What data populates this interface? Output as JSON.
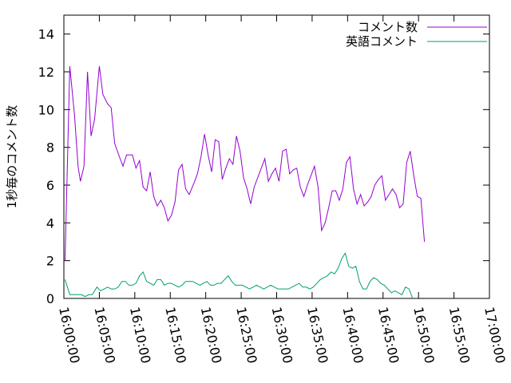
{
  "chart_data": {
    "type": "line",
    "title": "",
    "xlabel": "",
    "ylabel": "1秒毎のコメント数",
    "xlim": [
      "16:00:00",
      "17:00:00"
    ],
    "ylim": [
      0,
      15
    ],
    "xticks": [
      "16:00:00",
      "16:05:00",
      "16:10:00",
      "16:15:00",
      "16:20:00",
      "16:25:00",
      "16:30:00",
      "16:35:00",
      "16:40:00",
      "16:45:00",
      "16:50:00",
      "16:55:00",
      "17:00:00"
    ],
    "yticks": [
      0,
      2,
      4,
      6,
      8,
      10,
      12,
      14
    ],
    "grid": false,
    "legend_position": "top-right",
    "series": [
      {
        "name": "コメント数",
        "color": "#9400d3",
        "points": [
          [
            "16:00:10",
            2.0
          ],
          [
            "16:00:50",
            12.3
          ],
          [
            "16:01:30",
            9.7
          ],
          [
            "16:02:00",
            7.0
          ],
          [
            "16:02:20",
            6.2
          ],
          [
            "16:02:50",
            7.0
          ],
          [
            "16:03:20",
            12.0
          ],
          [
            "16:03:50",
            8.6
          ],
          [
            "16:04:20",
            9.5
          ],
          [
            "16:05:00",
            12.3
          ],
          [
            "16:05:30",
            10.8
          ],
          [
            "16:06:10",
            10.3
          ],
          [
            "16:06:40",
            10.1
          ],
          [
            "16:07:10",
            8.2
          ],
          [
            "16:07:50",
            7.5
          ],
          [
            "16:08:20",
            7.0
          ],
          [
            "16:08:50",
            7.6
          ],
          [
            "16:09:40",
            7.6
          ],
          [
            "16:10:10",
            6.9
          ],
          [
            "16:10:40",
            7.3
          ],
          [
            "16:11:10",
            5.9
          ],
          [
            "16:11:40",
            5.7
          ],
          [
            "16:12:10",
            6.7
          ],
          [
            "16:12:40",
            5.4
          ],
          [
            "16:13:10",
            4.9
          ],
          [
            "16:13:40",
            5.2
          ],
          [
            "16:14:10",
            4.8
          ],
          [
            "16:14:40",
            4.1
          ],
          [
            "16:15:10",
            4.4
          ],
          [
            "16:15:40",
            5.1
          ],
          [
            "16:16:10",
            6.8
          ],
          [
            "16:16:40",
            7.1
          ],
          [
            "16:17:10",
            5.8
          ],
          [
            "16:17:40",
            5.5
          ],
          [
            "16:18:20",
            6.1
          ],
          [
            "16:18:50",
            6.6
          ],
          [
            "16:19:20",
            7.5
          ],
          [
            "16:19:50",
            8.7
          ],
          [
            "16:20:20",
            7.6
          ],
          [
            "16:20:50",
            6.7
          ],
          [
            "16:21:20",
            8.4
          ],
          [
            "16:21:50",
            8.3
          ],
          [
            "16:22:20",
            6.3
          ],
          [
            "16:22:50",
            6.9
          ],
          [
            "16:23:20",
            7.4
          ],
          [
            "16:23:50",
            7.1
          ],
          [
            "16:24:20",
            8.6
          ],
          [
            "16:24:50",
            7.8
          ],
          [
            "16:25:20",
            6.4
          ],
          [
            "16:25:50",
            5.8
          ],
          [
            "16:26:20",
            5.0
          ],
          [
            "16:26:50",
            5.9
          ],
          [
            "16:27:20",
            6.4
          ],
          [
            "16:27:50",
            6.9
          ],
          [
            "16:28:20",
            7.4
          ],
          [
            "16:28:50",
            6.2
          ],
          [
            "16:29:20",
            6.6
          ],
          [
            "16:29:50",
            6.9
          ],
          [
            "16:30:20",
            6.2
          ],
          [
            "16:30:50",
            7.8
          ],
          [
            "16:31:20",
            7.9
          ],
          [
            "16:31:50",
            6.6
          ],
          [
            "16:32:20",
            6.8
          ],
          [
            "16:32:50",
            6.9
          ],
          [
            "16:33:20",
            5.9
          ],
          [
            "16:33:50",
            5.4
          ],
          [
            "16:34:20",
            6.0
          ],
          [
            "16:34:50",
            6.5
          ],
          [
            "16:35:20",
            7.0
          ],
          [
            "16:35:50",
            5.9
          ],
          [
            "16:36:20",
            3.6
          ],
          [
            "16:36:50",
            4.0
          ],
          [
            "16:37:20",
            4.8
          ],
          [
            "16:37:50",
            5.7
          ],
          [
            "16:38:20",
            5.7
          ],
          [
            "16:38:50",
            5.2
          ],
          [
            "16:39:20",
            5.8
          ],
          [
            "16:39:50",
            7.2
          ],
          [
            "16:40:20",
            7.5
          ],
          [
            "16:40:50",
            5.8
          ],
          [
            "16:41:20",
            5.0
          ],
          [
            "16:41:50",
            5.5
          ],
          [
            "16:42:20",
            4.9
          ],
          [
            "16:42:50",
            5.1
          ],
          [
            "16:43:20",
            5.4
          ],
          [
            "16:43:50",
            6.0
          ],
          [
            "16:44:20",
            6.3
          ],
          [
            "16:44:50",
            6.5
          ],
          [
            "16:45:20",
            5.2
          ],
          [
            "16:45:50",
            5.5
          ],
          [
            "16:46:20",
            5.8
          ],
          [
            "16:46:50",
            5.5
          ],
          [
            "16:47:20",
            4.8
          ],
          [
            "16:47:50",
            5.0
          ],
          [
            "16:48:20",
            7.2
          ],
          [
            "16:48:50",
            7.8
          ],
          [
            "16:49:20",
            6.5
          ],
          [
            "16:49:50",
            5.4
          ],
          [
            "16:50:20",
            5.3
          ],
          [
            "16:50:50",
            3.0
          ]
        ]
      },
      {
        "name": "英語コメント",
        "color": "#009e73",
        "points": [
          [
            "16:00:10",
            1.0
          ],
          [
            "16:00:50",
            0.2
          ],
          [
            "16:01:30",
            0.2
          ],
          [
            "16:02:00",
            0.2
          ],
          [
            "16:02:30",
            0.2
          ],
          [
            "16:03:00",
            0.1
          ],
          [
            "16:03:30",
            0.2
          ],
          [
            "16:04:00",
            0.2
          ],
          [
            "16:04:40",
            0.6
          ],
          [
            "16:05:10",
            0.4
          ],
          [
            "16:05:40",
            0.5
          ],
          [
            "16:06:10",
            0.6
          ],
          [
            "16:06:40",
            0.5
          ],
          [
            "16:07:10",
            0.5
          ],
          [
            "16:07:40",
            0.6
          ],
          [
            "16:08:10",
            0.9
          ],
          [
            "16:08:40",
            0.9
          ],
          [
            "16:09:10",
            0.7
          ],
          [
            "16:09:40",
            0.7
          ],
          [
            "16:10:10",
            0.8
          ],
          [
            "16:10:40",
            1.2
          ],
          [
            "16:11:10",
            1.4
          ],
          [
            "16:11:40",
            0.9
          ],
          [
            "16:12:10",
            0.8
          ],
          [
            "16:12:40",
            0.7
          ],
          [
            "16:13:10",
            1.0
          ],
          [
            "16:13:40",
            1.0
          ],
          [
            "16:14:10",
            0.7
          ],
          [
            "16:14:40",
            0.8
          ],
          [
            "16:15:10",
            0.8
          ],
          [
            "16:15:40",
            0.7
          ],
          [
            "16:16:10",
            0.6
          ],
          [
            "16:16:40",
            0.7
          ],
          [
            "16:17:10",
            0.9
          ],
          [
            "16:17:40",
            0.9
          ],
          [
            "16:18:10",
            0.9
          ],
          [
            "16:18:40",
            0.8
          ],
          [
            "16:19:10",
            0.7
          ],
          [
            "16:19:40",
            0.8
          ],
          [
            "16:20:10",
            0.9
          ],
          [
            "16:20:40",
            0.7
          ],
          [
            "16:21:10",
            0.7
          ],
          [
            "16:21:40",
            0.8
          ],
          [
            "16:22:10",
            0.8
          ],
          [
            "16:22:40",
            1.0
          ],
          [
            "16:23:10",
            1.2
          ],
          [
            "16:23:40",
            0.9
          ],
          [
            "16:24:10",
            0.7
          ],
          [
            "16:24:40",
            0.7
          ],
          [
            "16:25:10",
            0.7
          ],
          [
            "16:25:40",
            0.6
          ],
          [
            "16:26:10",
            0.5
          ],
          [
            "16:26:40",
            0.6
          ],
          [
            "16:27:10",
            0.7
          ],
          [
            "16:27:40",
            0.6
          ],
          [
            "16:28:10",
            0.5
          ],
          [
            "16:28:40",
            0.6
          ],
          [
            "16:29:10",
            0.7
          ],
          [
            "16:29:40",
            0.6
          ],
          [
            "16:30:10",
            0.5
          ],
          [
            "16:30:40",
            0.5
          ],
          [
            "16:31:10",
            0.5
          ],
          [
            "16:31:40",
            0.5
          ],
          [
            "16:32:10",
            0.6
          ],
          [
            "16:32:40",
            0.7
          ],
          [
            "16:33:10",
            0.8
          ],
          [
            "16:33:40",
            0.6
          ],
          [
            "16:34:10",
            0.6
          ],
          [
            "16:34:40",
            0.5
          ],
          [
            "16:35:10",
            0.6
          ],
          [
            "16:35:40",
            0.8
          ],
          [
            "16:36:10",
            1.0
          ],
          [
            "16:36:40",
            1.1
          ],
          [
            "16:37:10",
            1.2
          ],
          [
            "16:37:40",
            1.4
          ],
          [
            "16:38:10",
            1.3
          ],
          [
            "16:38:40",
            1.6
          ],
          [
            "16:39:10",
            2.1
          ],
          [
            "16:39:40",
            2.4
          ],
          [
            "16:40:10",
            1.7
          ],
          [
            "16:40:40",
            1.6
          ],
          [
            "16:41:10",
            1.7
          ],
          [
            "16:41:40",
            0.9
          ],
          [
            "16:42:10",
            0.5
          ],
          [
            "16:42:40",
            0.5
          ],
          [
            "16:43:10",
            0.9
          ],
          [
            "16:43:40",
            1.1
          ],
          [
            "16:44:10",
            1.0
          ],
          [
            "16:44:40",
            0.8
          ],
          [
            "16:45:10",
            0.7
          ],
          [
            "16:45:40",
            0.5
          ],
          [
            "16:46:10",
            0.3
          ],
          [
            "16:46:40",
            0.4
          ],
          [
            "16:47:10",
            0.3
          ],
          [
            "16:47:40",
            0.2
          ],
          [
            "16:48:10",
            0.6
          ],
          [
            "16:48:40",
            0.5
          ],
          [
            "16:49:10",
            0.0
          ]
        ]
      }
    ]
  }
}
